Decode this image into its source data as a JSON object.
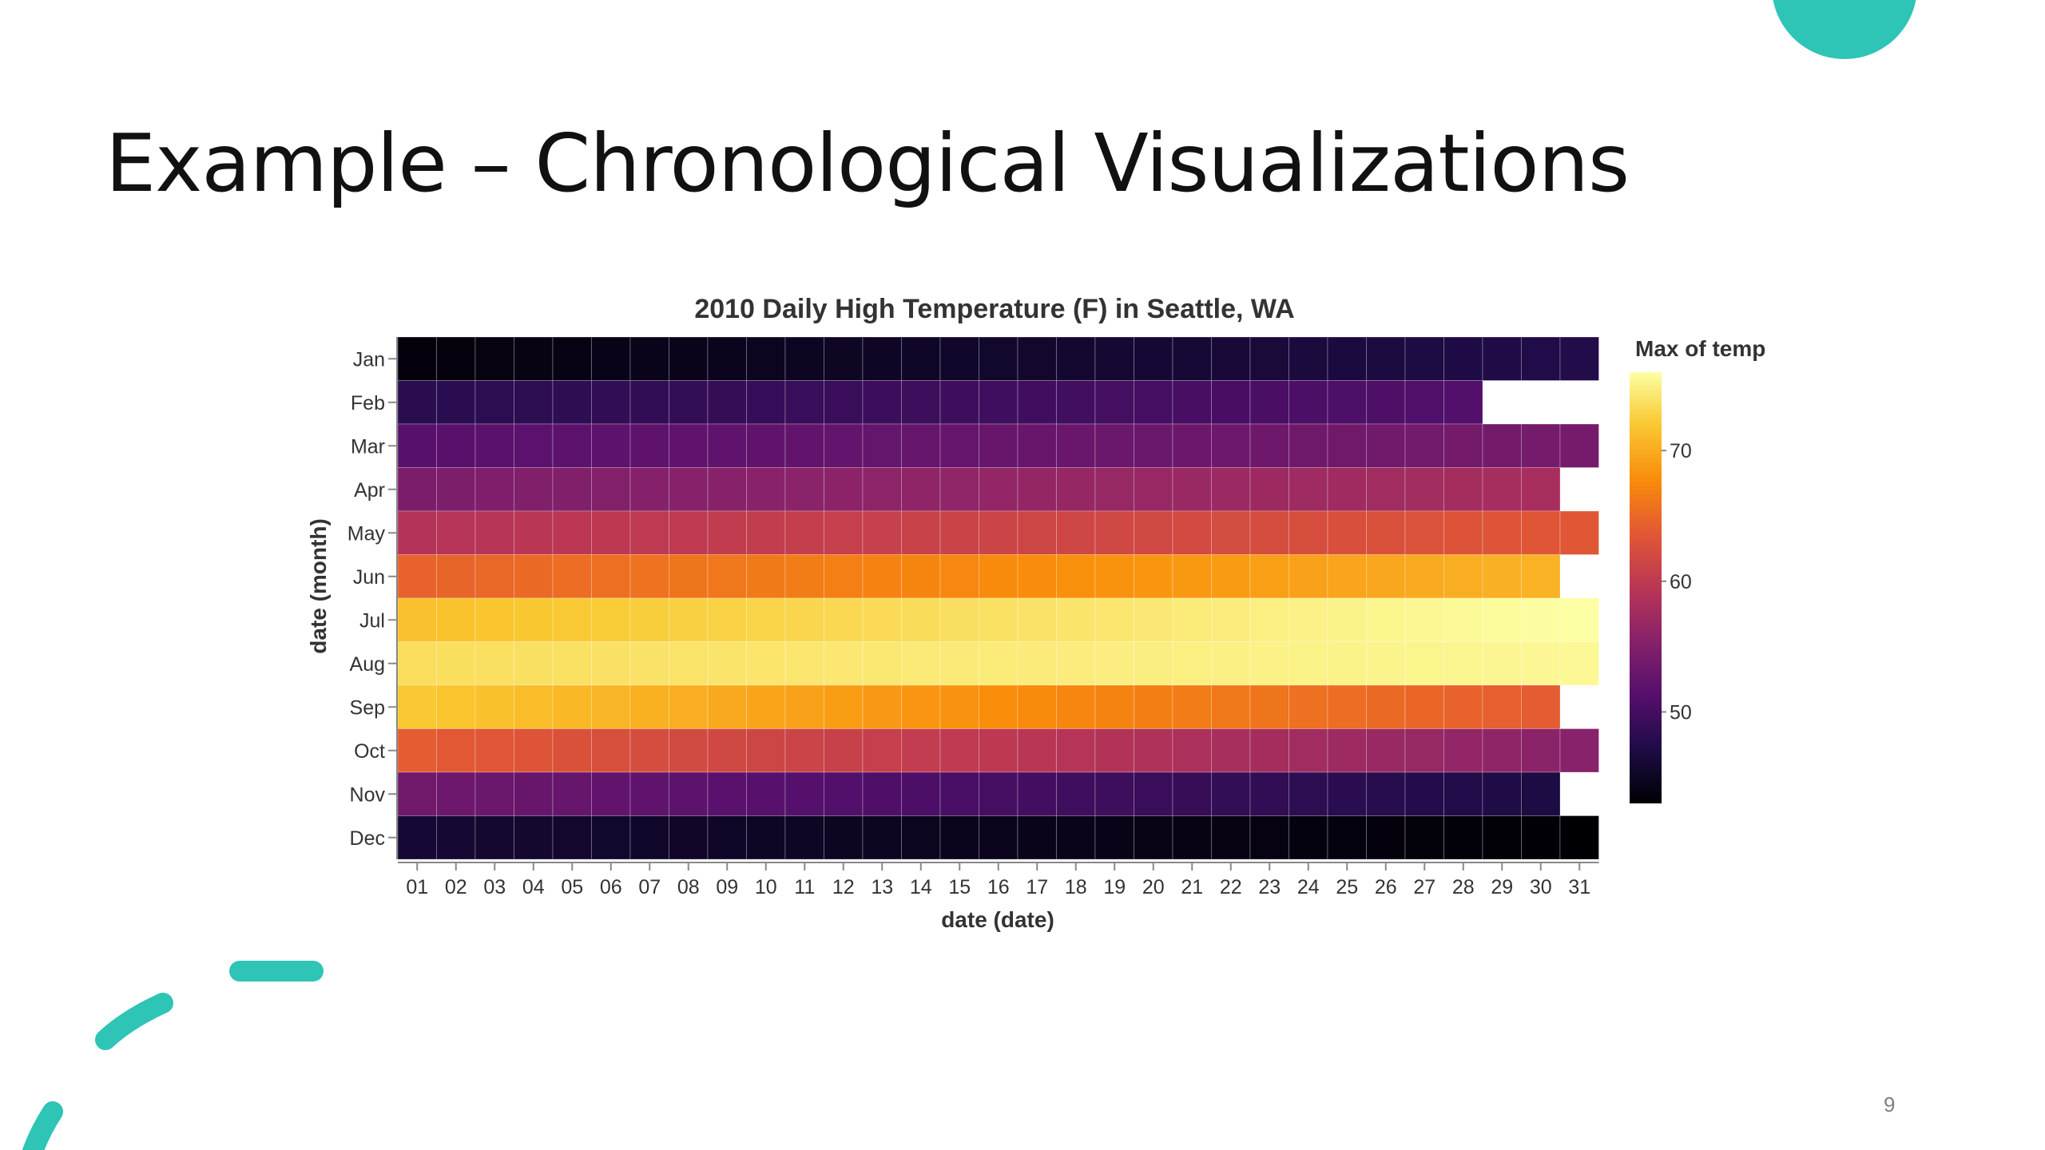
{
  "slide": {
    "title": "Example – Chronological Visualizations",
    "page_number": "9"
  },
  "colors": {
    "accent": "#2ec4b6",
    "title_text": "#111111",
    "page_number": "#7f7f7f"
  },
  "chart_data": {
    "type": "heatmap",
    "title": "2010 Daily High Temperature (F) in Seattle, WA",
    "xlabel": "date (date)",
    "ylabel": "date (month)",
    "x": [
      "01",
      "02",
      "03",
      "04",
      "05",
      "06",
      "07",
      "08",
      "09",
      "10",
      "11",
      "12",
      "13",
      "14",
      "15",
      "16",
      "17",
      "18",
      "19",
      "20",
      "21",
      "22",
      "23",
      "24",
      "25",
      "26",
      "27",
      "28",
      "29",
      "30",
      "31"
    ],
    "y": [
      "Jan",
      "Feb",
      "Mar",
      "Apr",
      "May",
      "Jun",
      "Jul",
      "Aug",
      "Sep",
      "Oct",
      "Nov",
      "Dec"
    ],
    "days_in_month": [
      31,
      28,
      31,
      30,
      31,
      30,
      31,
      31,
      30,
      31,
      30,
      31
    ],
    "month_ranges": [
      [
        43.5,
        47.5
      ],
      [
        48,
        51
      ],
      [
        51.5,
        54
      ],
      [
        54.5,
        58
      ],
      [
        59,
        63.5
      ],
      [
        64.5,
        70.5
      ],
      [
        71.5,
        76
      ],
      [
        73.5,
        75.5
      ],
      [
        72,
        64
      ],
      [
        64,
        55.5
      ],
      [
        53.5,
        47
      ],
      [
        46,
        43
      ]
    ],
    "legend": {
      "title": "Max of temp",
      "ticks": [
        50,
        60,
        70
      ],
      "domain": [
        43,
        76
      ],
      "position": "right"
    },
    "color_scheme": "inferno",
    "grid": false
  }
}
